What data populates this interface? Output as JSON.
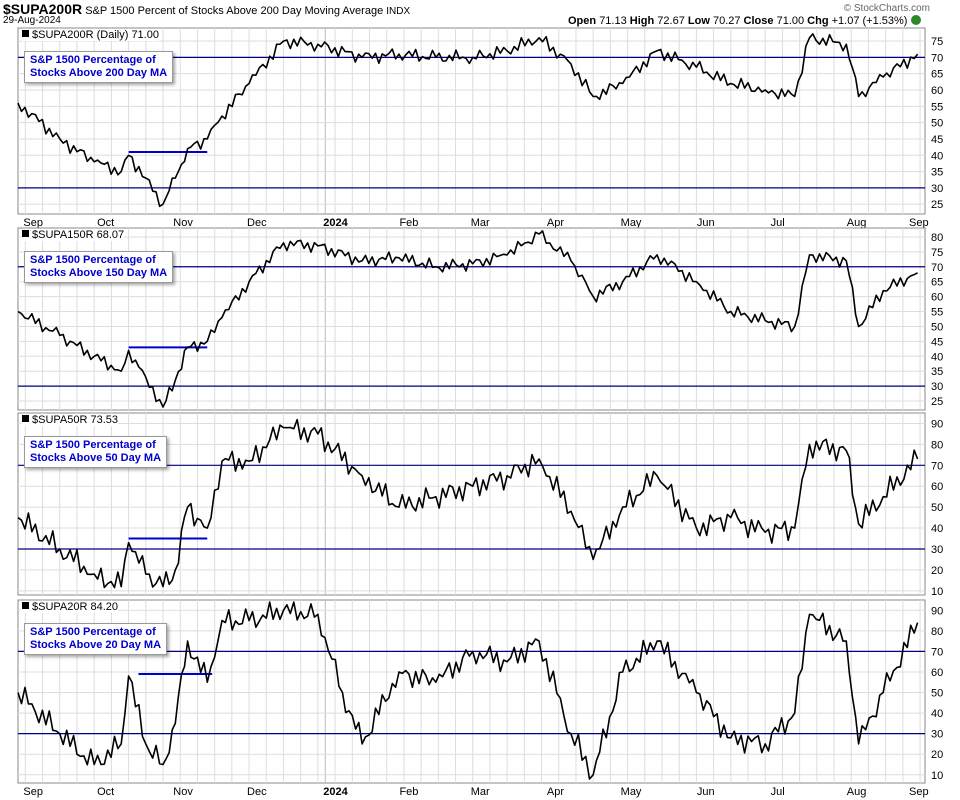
{
  "header": {
    "symbol": "$SUPA200R",
    "description": "S&P 1500 Percent of Stocks Above 200 Day Moving Average",
    "exchange": "INDX",
    "date": "29-Aug-2024",
    "open_label": "Open",
    "open": "71.13",
    "high_label": "High",
    "high": "72.67",
    "low_label": "Low",
    "low": "70.27",
    "close_label": "Close",
    "close": "71.00",
    "chg_label": "Chg",
    "chg": "+1.07 (+1.53%)",
    "credit": "© StockCharts.com"
  },
  "colors": {
    "price_line": "#000000",
    "level_line": "#000080",
    "trend_line": "#0000cc",
    "grid": "#dddddd",
    "callout_text": "#0000cc"
  },
  "chart_data": [
    {
      "type": "line",
      "panel_label": "$SUPA200R (Daily) 71.00",
      "callout": [
        "S&P 1500 Percentage of",
        "Stocks Above 200 Day MA"
      ],
      "y_ticks": [
        25,
        30,
        35,
        40,
        45,
        50,
        55,
        60,
        65,
        70,
        75
      ],
      "ylim": [
        22,
        79
      ],
      "reference_lines": [
        70,
        30
      ],
      "trend_segment": {
        "from": "2023-10-13",
        "to": "2023-11-14",
        "value": 41
      },
      "x_labels": [
        "Sep",
        "Oct",
        "Nov",
        "Dec",
        "2024",
        "Feb",
        "Mar",
        "Apr",
        "May",
        "Jun",
        "Jul",
        "Aug",
        "Sep"
      ],
      "series": [
        {
          "x": [
            "2023-08-29",
            "2023-09-15",
            "2023-09-29",
            "2023-10-10",
            "2023-10-13",
            "2023-10-20",
            "2023-10-27",
            "2023-11-01",
            "2023-11-06",
            "2023-11-14",
            "2023-11-20",
            "2023-12-01",
            "2023-12-15",
            "2023-12-29",
            "2024-01-16",
            "2024-01-31",
            "2024-02-15",
            "2024-03-01",
            "2024-03-15",
            "2024-03-28",
            "2024-04-10",
            "2024-04-19",
            "2024-05-01",
            "2024-05-15",
            "2024-05-31",
            "2024-06-14",
            "2024-06-28",
            "2024-07-10",
            "2024-07-16",
            "2024-07-31",
            "2024-08-05",
            "2024-08-15",
            "2024-08-29"
          ],
          "y": [
            56,
            45,
            38,
            35,
            40,
            33,
            25,
            33,
            42,
            45,
            52,
            62,
            75,
            74,
            70,
            71,
            70,
            70,
            72,
            76,
            68,
            58,
            62,
            72,
            67,
            62,
            60,
            58,
            76,
            74,
            58,
            64,
            71
          ]
        }
      ]
    },
    {
      "type": "line",
      "panel_label": "$SUPA150R 68.07",
      "callout": [
        "S&P 1500 Percentage of",
        "Stocks Above 150 Day MA"
      ],
      "y_ticks": [
        25,
        30,
        35,
        40,
        45,
        50,
        55,
        60,
        65,
        70,
        75,
        80
      ],
      "ylim": [
        22,
        83
      ],
      "reference_lines": [
        70,
        30
      ],
      "trend_segment": {
        "from": "2023-10-13",
        "to": "2023-11-14",
        "value": 43
      },
      "x_labels": [],
      "series": [
        {
          "x": [
            "2023-08-29",
            "2023-09-15",
            "2023-09-29",
            "2023-10-10",
            "2023-10-13",
            "2023-10-20",
            "2023-10-27",
            "2023-11-01",
            "2023-11-06",
            "2023-11-14",
            "2023-11-20",
            "2023-12-01",
            "2023-12-15",
            "2023-12-29",
            "2024-01-16",
            "2024-01-31",
            "2024-02-15",
            "2024-03-01",
            "2024-03-15",
            "2024-03-28",
            "2024-04-10",
            "2024-04-19",
            "2024-05-01",
            "2024-05-15",
            "2024-05-31",
            "2024-06-14",
            "2024-06-28",
            "2024-07-10",
            "2024-07-16",
            "2024-07-31",
            "2024-08-05",
            "2024-08-15",
            "2024-08-29"
          ],
          "y": [
            55,
            47,
            40,
            35,
            42,
            33,
            23,
            32,
            43,
            45,
            53,
            65,
            78,
            77,
            72,
            73,
            70,
            71,
            74,
            81,
            72,
            60,
            65,
            74,
            65,
            55,
            52,
            50,
            74,
            72,
            50,
            62,
            68
          ]
        }
      ]
    },
    {
      "type": "line",
      "panel_label": "$SUPA50R 73.53",
      "callout": [
        "S&P 1500 Percentage of",
        "Stocks Above 50 Day MA"
      ],
      "y_ticks": [
        10,
        20,
        30,
        40,
        50,
        60,
        70,
        80,
        90
      ],
      "ylim": [
        8,
        95
      ],
      "reference_lines": [
        70,
        30
      ],
      "trend_segment": {
        "from": "2023-10-13",
        "to": "2023-11-14",
        "value": 35
      },
      "x_labels": [],
      "series": [
        {
          "x": [
            "2023-08-29",
            "2023-09-15",
            "2023-09-29",
            "2023-10-10",
            "2023-10-13",
            "2023-10-20",
            "2023-10-27",
            "2023-11-01",
            "2023-11-06",
            "2023-11-14",
            "2023-11-20",
            "2023-12-01",
            "2023-12-15",
            "2023-12-29",
            "2024-01-16",
            "2024-01-31",
            "2024-02-15",
            "2024-03-01",
            "2024-03-15",
            "2024-03-28",
            "2024-04-10",
            "2024-04-19",
            "2024-05-01",
            "2024-05-15",
            "2024-05-31",
            "2024-06-14",
            "2024-06-28",
            "2024-07-10",
            "2024-07-16",
            "2024-07-31",
            "2024-08-05",
            "2024-08-15",
            "2024-08-29"
          ],
          "y": [
            45,
            30,
            18,
            12,
            33,
            18,
            12,
            20,
            50,
            40,
            72,
            72,
            88,
            85,
            65,
            50,
            55,
            60,
            65,
            73,
            48,
            25,
            50,
            65,
            40,
            45,
            38,
            40,
            80,
            77,
            42,
            55,
            73
          ]
        }
      ]
    },
    {
      "type": "line",
      "panel_label": "$SUPA20R 84.20",
      "callout": [
        "S&P 1500 Percentage of",
        "Stocks Above 20 Day MA"
      ],
      "y_ticks": [
        10,
        20,
        30,
        40,
        50,
        60,
        70,
        80,
        90
      ],
      "ylim": [
        6,
        95
      ],
      "reference_lines": [
        70,
        30
      ],
      "trend_segment": {
        "from": "2023-10-17",
        "to": "2023-11-16",
        "value": 59
      },
      "x_labels": [
        "Sep",
        "Oct",
        "Nov",
        "Dec",
        "2024",
        "Feb",
        "Mar",
        "Apr",
        "May",
        "Jun",
        "Jul",
        "Aug",
        "Sep"
      ],
      "series": [
        {
          "x": [
            "2023-08-29",
            "2023-09-15",
            "2023-09-29",
            "2023-10-10",
            "2023-10-13",
            "2023-10-20",
            "2023-10-27",
            "2023-11-01",
            "2023-11-06",
            "2023-11-14",
            "2023-11-20",
            "2023-12-01",
            "2023-12-15",
            "2023-12-29",
            "2024-01-08",
            "2024-01-16",
            "2024-01-31",
            "2024-02-15",
            "2024-03-01",
            "2024-03-15",
            "2024-03-28",
            "2024-04-10",
            "2024-04-19",
            "2024-05-01",
            "2024-05-15",
            "2024-05-31",
            "2024-06-14",
            "2024-06-28",
            "2024-07-10",
            "2024-07-16",
            "2024-07-31",
            "2024-08-05",
            "2024-08-15",
            "2024-08-29"
          ],
          "y": [
            50,
            30,
            15,
            25,
            58,
            25,
            15,
            35,
            75,
            55,
            85,
            85,
            90,
            88,
            50,
            25,
            60,
            55,
            70,
            65,
            75,
            30,
            10,
            60,
            75,
            50,
            28,
            25,
            40,
            88,
            75,
            25,
            50,
            84
          ]
        }
      ]
    }
  ]
}
